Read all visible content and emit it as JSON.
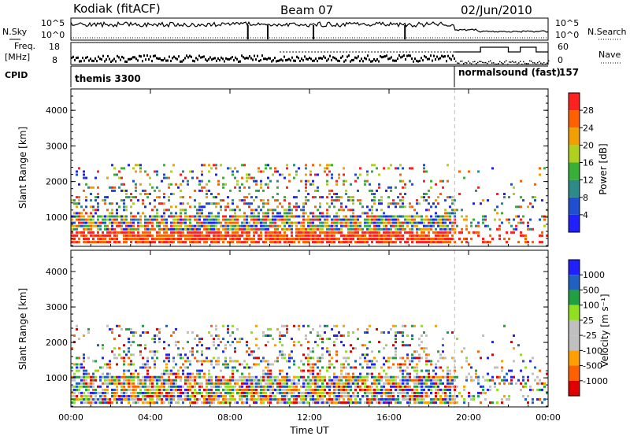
{
  "header": {
    "station": "Kodiak (fitACF)",
    "beam": "Beam 07",
    "date": "02/Jun/2010"
  },
  "panels": {
    "nsky_label": "N.Sky",
    "nsearch_label": "N.Search",
    "freq_label_1": "Freq.",
    "freq_label_2": "[MHz]",
    "nave_label": "Nave",
    "cpid_label": "CPID",
    "nsky_ticks": [
      "10^5",
      "10^0"
    ],
    "nsearch_ticks": [
      "10^5",
      "10^0"
    ],
    "freq_ticks": [
      "18",
      "8"
    ],
    "nave_ticks": [
      "60",
      "0"
    ],
    "cpid_left": "themis 3300",
    "cpid_right": "normalsound (fast)",
    "cpid_right_num": "157"
  },
  "colors": {
    "power": [
      "#2020ff",
      "#1f4fd0",
      "#2e8a88",
      "#38b038",
      "#b0d020",
      "#f0a000",
      "#ff6000",
      "#ff2020"
    ],
    "velocity": [
      "#e00000",
      "#ff6000",
      "#ffa000",
      "#c0c0c0",
      "#c0c0c0",
      "#90e020",
      "#20a040",
      "#1f60c0",
      "#2020ff"
    ]
  },
  "chart_data": [
    {
      "type": "heatmap",
      "name": "power-panel",
      "ylabel": "Slant Range [km]",
      "xlabel": "",
      "x_ticks": [
        "00:00",
        "04:00",
        "08:00",
        "12:00",
        "16:00",
        "20:00",
        "00:00"
      ],
      "y_ticks": [
        "1000",
        "2000",
        "3000",
        "4000"
      ],
      "ylim": [
        180,
        4600
      ],
      "xlim_hours": [
        0,
        24
      ],
      "colorbar_label": "Power [dB]",
      "colorbar_ticks": [
        "4",
        "8",
        "12",
        "16",
        "20",
        "24",
        "28"
      ],
      "colorbar_range": [
        0,
        32
      ],
      "mode_change_hour": 19.3
    },
    {
      "type": "heatmap",
      "name": "velocity-panel",
      "ylabel": "Slant Range [km]",
      "xlabel": "Time UT",
      "x_ticks": [
        "00:00",
        "04:00",
        "08:00",
        "12:00",
        "16:00",
        "20:00",
        "00:00"
      ],
      "y_ticks": [
        "1000",
        "2000",
        "3000",
        "4000"
      ],
      "ylim": [
        180,
        4600
      ],
      "xlim_hours": [
        0,
        24
      ],
      "colorbar_label": "Velocity [m s⁻¹]",
      "colorbar_ticks": [
        "1000",
        "500",
        "100",
        "25",
        "-25",
        "-100",
        "-500",
        "-1000"
      ],
      "mode_change_hour": 19.3
    }
  ]
}
